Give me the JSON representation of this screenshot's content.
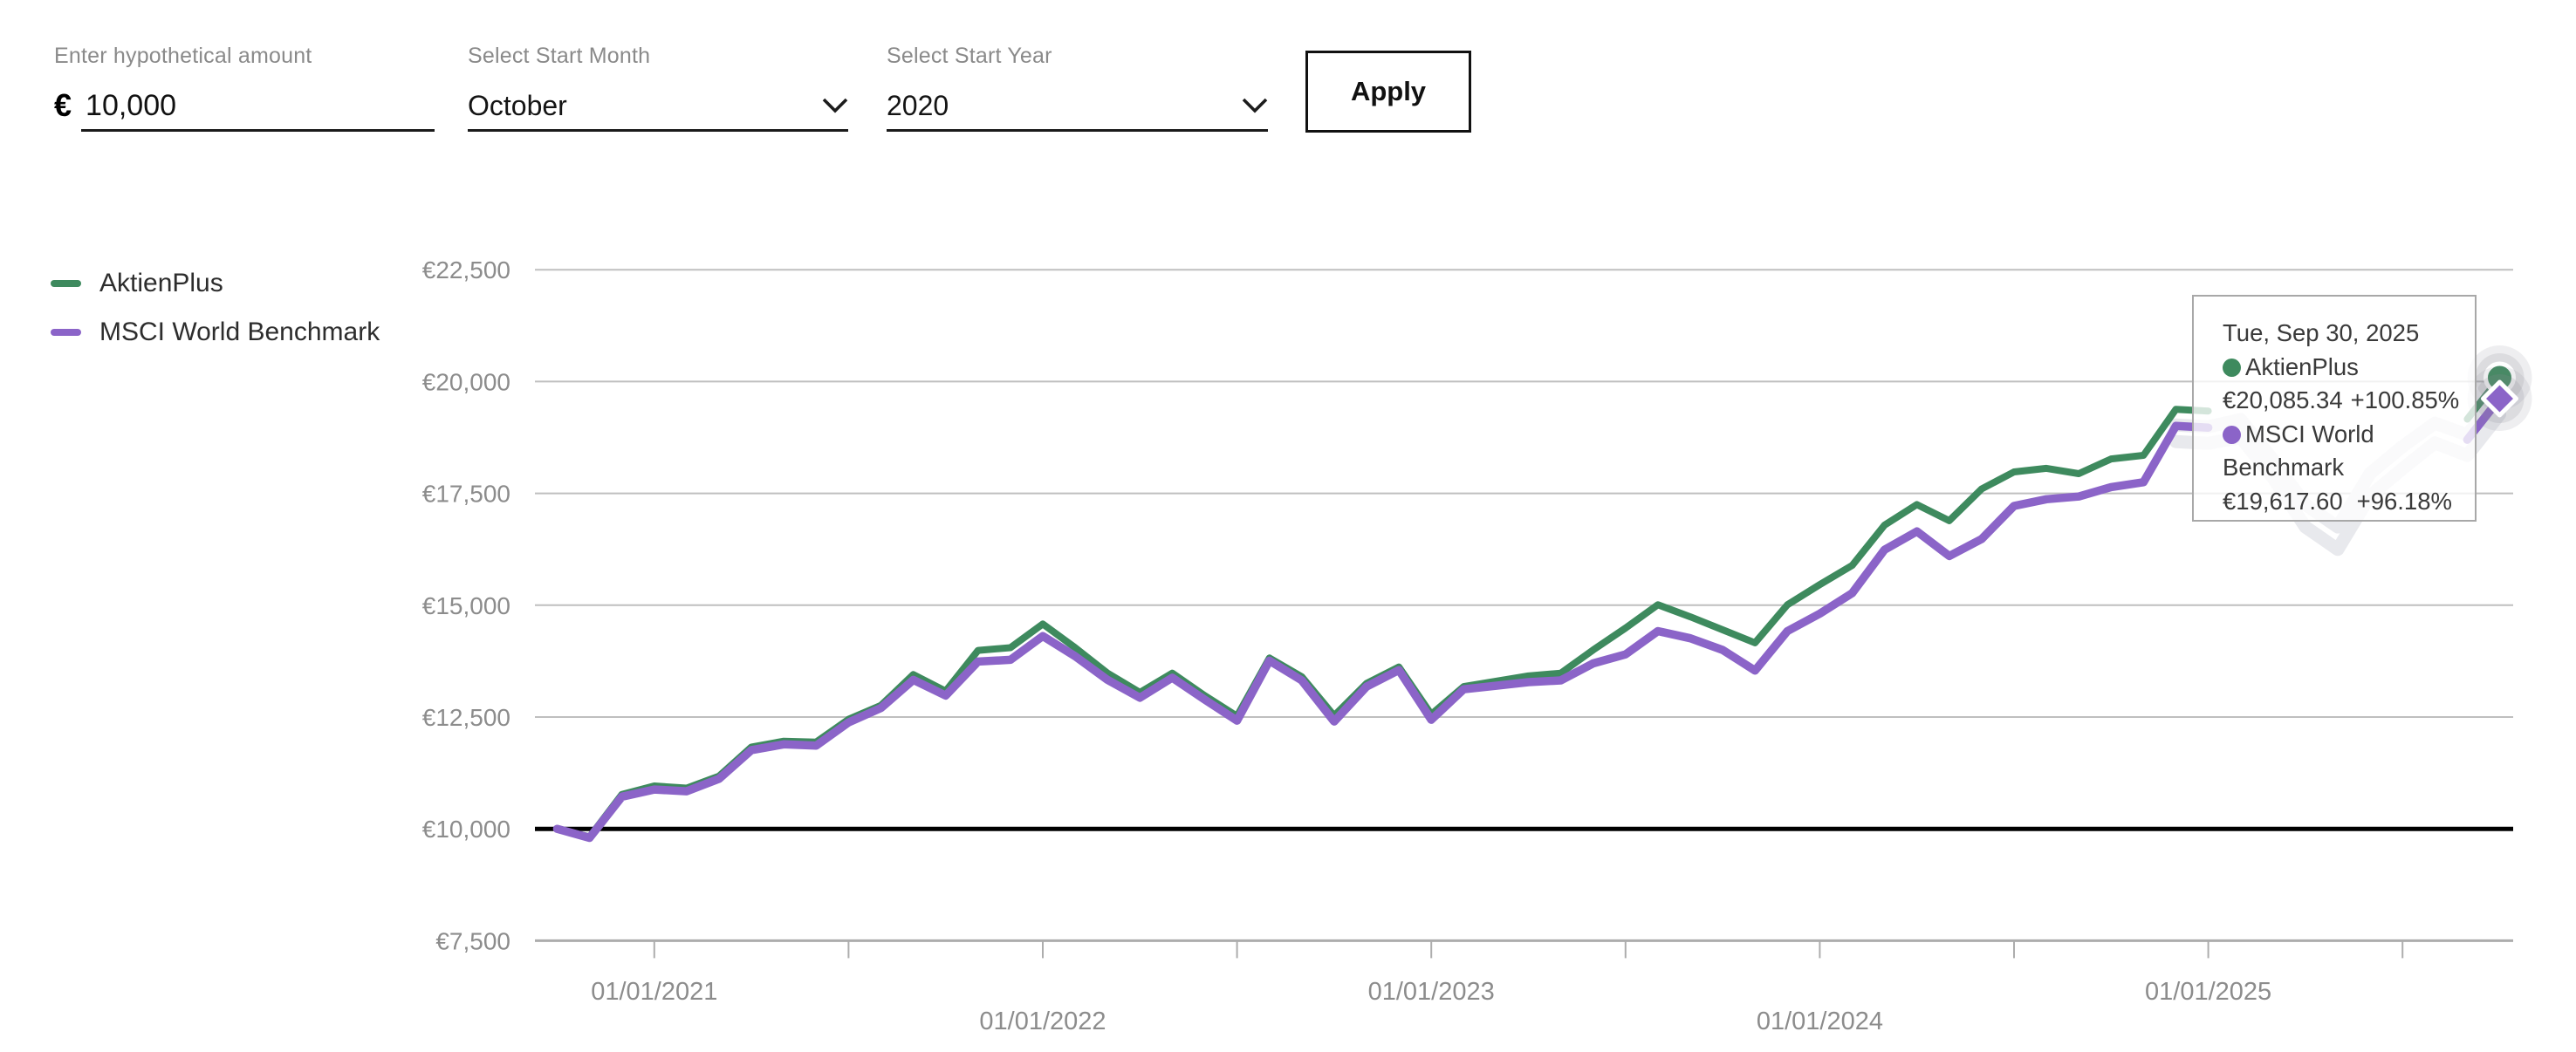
{
  "form": {
    "amount": {
      "label": "Enter hypothetical amount",
      "currency_symbol": "€",
      "value": "10,000"
    },
    "start_month": {
      "label": "Select Start Month",
      "value": "October"
    },
    "start_year": {
      "label": "Select Start Year",
      "value": "2020"
    },
    "apply_label": "Apply"
  },
  "legend": {
    "items": [
      {
        "name": "AktienPlus",
        "color": "#3e8a5e"
      },
      {
        "name": "MSCI World Benchmark",
        "color": "#8b64c8"
      }
    ]
  },
  "tooltip": {
    "date": "Tue, Sep 30, 2025",
    "items": [
      {
        "name": "AktienPlus",
        "value": "€20,085.34",
        "change": "+100.85%",
        "color": "#3e8a5e"
      },
      {
        "name": "MSCI World Benchmark",
        "value": "€19,617.60",
        "change": "+96.18%",
        "color": "#8b64c8"
      }
    ]
  },
  "chart_data": {
    "type": "line",
    "title": "",
    "xlabel": "",
    "ylabel": "",
    "x_unit": "month",
    "x_start": "Oct 2020",
    "x_end": "Sep 30, 2025",
    "ylim": [
      7500,
      22500
    ],
    "grid": true,
    "legend_position": "left",
    "baseline": {
      "value": 10000,
      "color": "#000000"
    },
    "y_ticks": [
      {
        "value": 22500,
        "label": "€22,500"
      },
      {
        "value": 20000,
        "label": "€20,000"
      },
      {
        "value": 17500,
        "label": "€17,500"
      },
      {
        "value": 15000,
        "label": "€15,000"
      },
      {
        "value": 12500,
        "label": "€12,500"
      },
      {
        "value": 10000,
        "label": "€10,000"
      },
      {
        "value": 7500,
        "label": "€7,500"
      }
    ],
    "x_ticks": [
      {
        "month_index": 3,
        "label": "01/01/2021",
        "row": 1
      },
      {
        "month_index": 9,
        "label": "",
        "row": 0
      },
      {
        "month_index": 15,
        "label": "01/01/2022",
        "row": 2
      },
      {
        "month_index": 21,
        "label": "",
        "row": 0
      },
      {
        "month_index": 27,
        "label": "01/01/2023",
        "row": 1
      },
      {
        "month_index": 33,
        "label": "",
        "row": 0
      },
      {
        "month_index": 39,
        "label": "01/01/2024",
        "row": 2
      },
      {
        "month_index": 45,
        "label": "",
        "row": 0
      },
      {
        "month_index": 51,
        "label": "01/01/2025",
        "row": 1
      },
      {
        "month_index": 57,
        "label": "",
        "row": 0
      }
    ],
    "series": [
      {
        "name": "AktienPlus",
        "color": "#3e8a5e",
        "marker": "circle",
        "final_value": 20085.34,
        "final_change": "+100.85%",
        "values": [
          10000,
          9820,
          10770,
          10960,
          10910,
          11180,
          11830,
          11960,
          11940,
          12450,
          12760,
          13450,
          13080,
          13990,
          14050,
          14580,
          14050,
          13480,
          13050,
          13480,
          12980,
          12520,
          13820,
          13400,
          12530,
          13250,
          13620,
          12560,
          13180,
          13300,
          13420,
          13480,
          14000,
          14490,
          15010,
          14740,
          14450,
          14160,
          15010,
          15460,
          15890,
          16790,
          17250,
          16890,
          17600,
          17980,
          18060,
          17940,
          18270,
          18350,
          19380,
          19340,
          19500,
          18600,
          17600,
          17100,
          18300,
          18900,
          19420,
          19160,
          20085.34
        ]
      },
      {
        "name": "MSCI World Benchmark",
        "color": "#8b64c8",
        "marker": "diamond",
        "final_value": 19617.6,
        "final_change": "+96.18%",
        "values": [
          10000,
          9800,
          10720,
          10880,
          10840,
          11120,
          11760,
          11890,
          11860,
          12380,
          12700,
          13330,
          12980,
          13740,
          13780,
          14310,
          13860,
          13330,
          12930,
          13380,
          12890,
          12420,
          13760,
          13320,
          12400,
          13180,
          13550,
          12440,
          13120,
          13200,
          13280,
          13320,
          13700,
          13900,
          14420,
          14260,
          14000,
          13540,
          14420,
          14810,
          15270,
          16240,
          16650,
          16100,
          16480,
          17220,
          17370,
          17430,
          17640,
          17750,
          19010,
          18970,
          19100,
          18200,
          17100,
          16600,
          17800,
          18400,
          18980,
          18700,
          19617.6
        ]
      }
    ]
  }
}
